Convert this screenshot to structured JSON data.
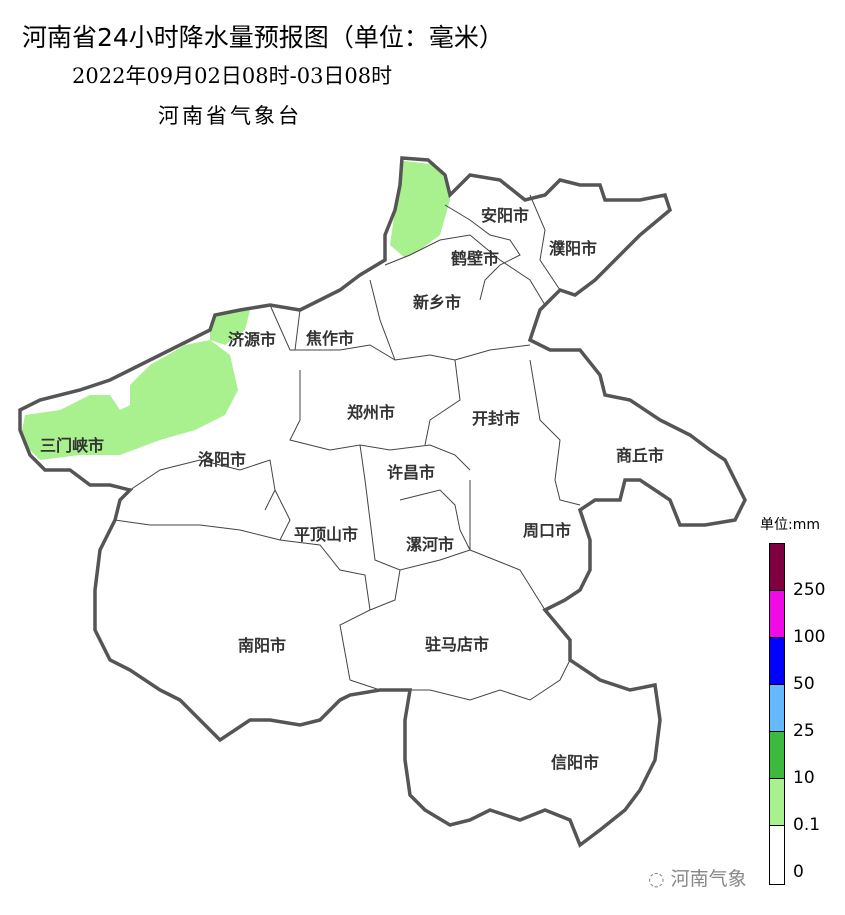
{
  "header": {
    "title": "河南省24小时降水量预报图（单位：毫米）",
    "period": "2022年09月02日08时-03日08时",
    "issuer": "河南省气象台"
  },
  "map": {
    "region": "河南省",
    "cities": [
      "安阳市",
      "鹤壁市",
      "濮阳市",
      "新乡市",
      "济源市",
      "焦作市",
      "三门峡市",
      "洛阳市",
      "郑州市",
      "开封市",
      "商丘市",
      "许昌市",
      "平顶山市",
      "漯河市",
      "周口市",
      "南阳市",
      "驻马店市",
      "信阳市"
    ],
    "rain_areas": [
      {
        "level": "0.1-10",
        "regions": [
          "安阳市西部",
          "济源市",
          "三门峡市",
          "洛阳市西北部"
        ]
      }
    ]
  },
  "legend": {
    "unit": "单位:mm",
    "bins": [
      {
        "label": "250",
        "color": "#7f0040"
      },
      {
        "label": "100",
        "color": "#f00ae6"
      },
      {
        "label": "50",
        "color": "#0000ff"
      },
      {
        "label": "25",
        "color": "#64b9ff"
      },
      {
        "label": "10",
        "color": "#3db93d"
      },
      {
        "label": "0.1",
        "color": "#a9f08e"
      },
      {
        "label": "0",
        "color": "#ffffff"
      }
    ]
  },
  "watermark": "河南气象"
}
